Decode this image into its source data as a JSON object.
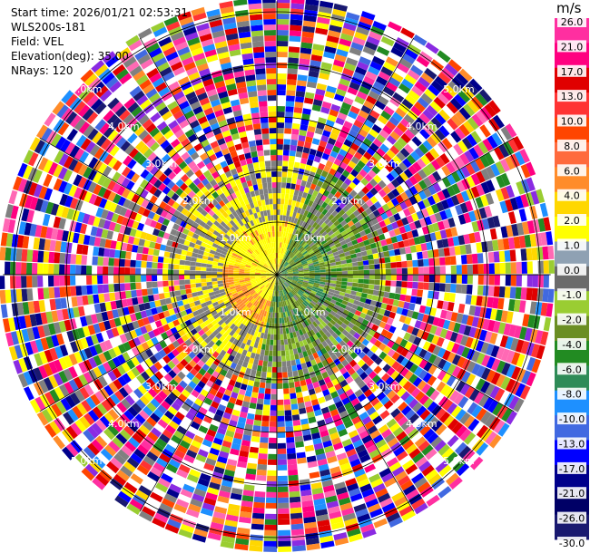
{
  "header": {
    "start_time": "Start time: 2026/01/21 02:53:31",
    "instrument": "WLS200s-181",
    "field": "Field: VEL",
    "elevation": "Elevation(deg): 35.00",
    "nrays": "NRays: 120"
  },
  "colorbar": {
    "units": "m/s",
    "levels": [
      "26.0",
      "21.0",
      "17.0",
      "13.0",
      "10.0",
      "8.0",
      "6.0",
      "4.0",
      "2.0",
      "1.0",
      "0.0",
      "-1.0",
      "-2.0",
      "-4.0",
      "-6.0",
      "-8.0",
      "-10.0",
      "-13.0",
      "-17.0",
      "-21.0",
      "-26.0",
      "-30.0"
    ],
    "colors": [
      "#ff2fa0",
      "#ff0080",
      "#e00000",
      "#ff3333",
      "#ff4500",
      "#ff6a3d",
      "#ff8c2a",
      "#ffd700",
      "#ffff00",
      "#8fa1b3",
      "#6b6b6b",
      "#9acd32",
      "#6b8e23",
      "#228b22",
      "#2e8b57",
      "#1e90ff",
      "#4169e1",
      "#0000ff",
      "#00008b",
      "#000066",
      "#191970"
    ]
  },
  "chart_data": {
    "type": "ppi",
    "field": "VEL",
    "units": "m/s",
    "nrays": 120,
    "elevation_deg": 35.0,
    "range_rings_km": [
      1.0,
      2.0,
      3.0,
      4.0,
      5.0
    ],
    "range_ring_labels": [
      "1.0km",
      "2.0km",
      "3.0km",
      "4.0km",
      "5.0km"
    ],
    "max_range_km": 5.2,
    "spokes_deg": [
      0,
      30,
      60,
      90,
      120,
      150,
      180,
      210,
      240,
      270,
      300,
      330
    ],
    "near_field": {
      "approaching_sector_deg": [
        20,
        190
      ],
      "receding_sector_deg": [
        190,
        380
      ]
    }
  }
}
